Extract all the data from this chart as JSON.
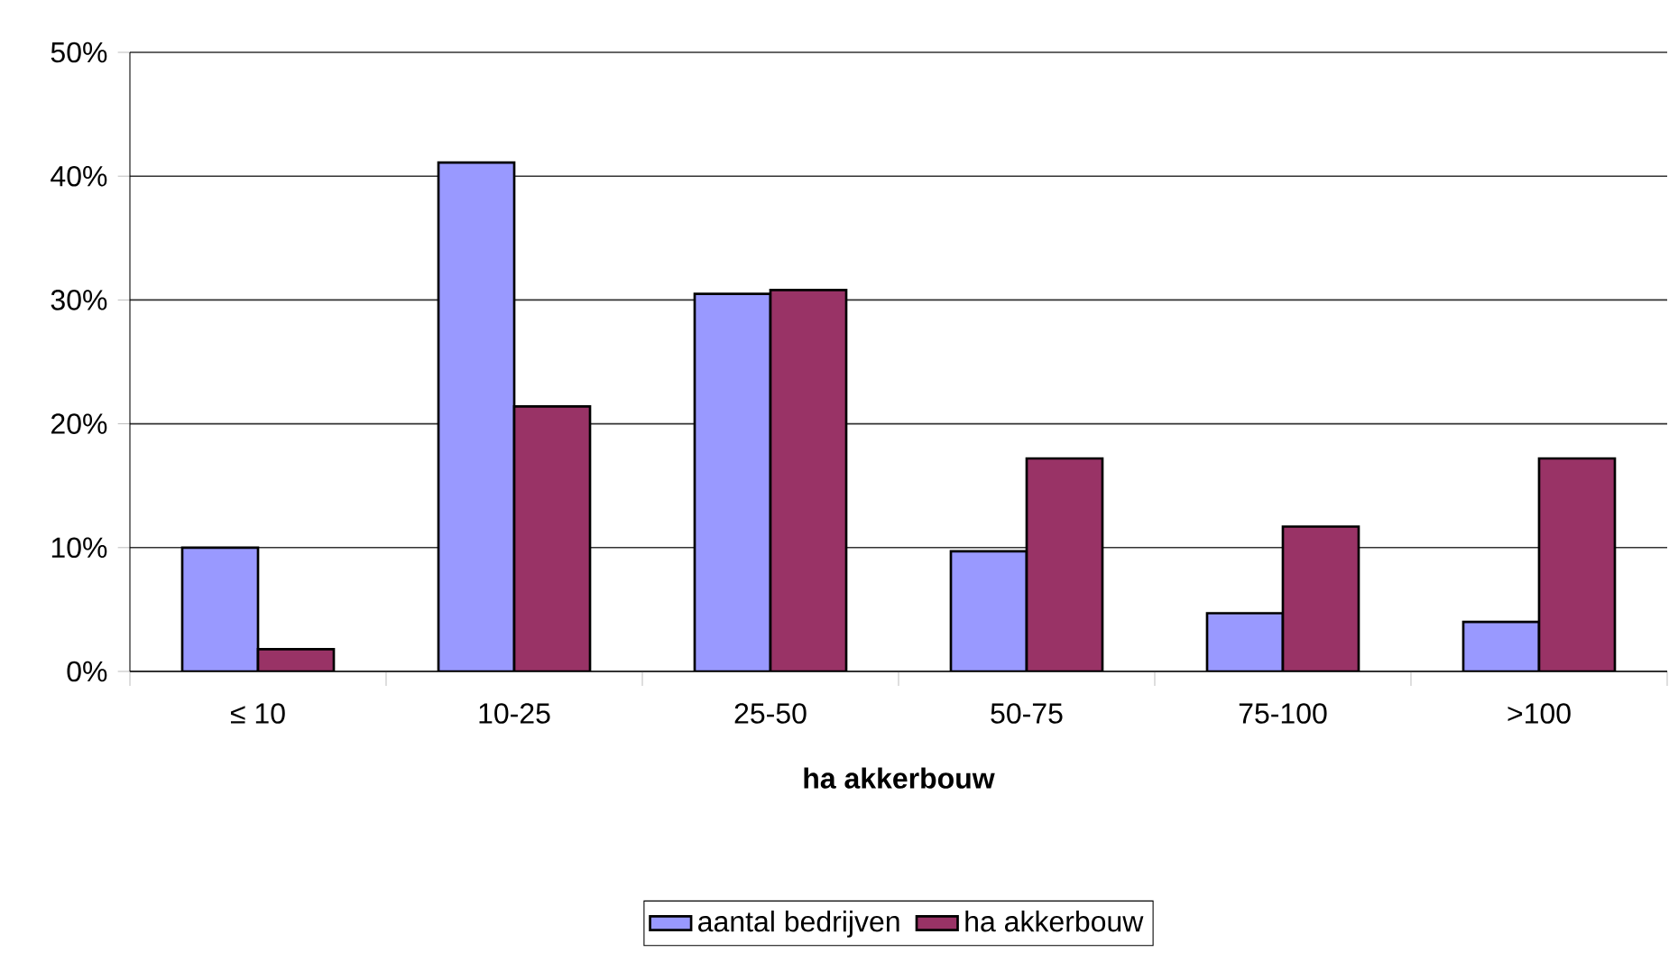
{
  "chart_data": {
    "type": "bar",
    "xlabel": "ha akkerbouw",
    "categories": [
      "≤ 10",
      "10-25",
      "25-50",
      "50-75",
      "75-100",
      ">100"
    ],
    "series": [
      {
        "name": "aantal bedrijven",
        "color": "#9999ff",
        "values": [
          10.0,
          41.1,
          30.5,
          9.7,
          4.7,
          4.0
        ]
      },
      {
        "name": "ha akkerbouw",
        "color": "#993366",
        "values": [
          1.8,
          21.4,
          30.8,
          17.2,
          11.7,
          17.2
        ]
      }
    ],
    "ylim": [
      0,
      50
    ],
    "yticks": [
      {
        "value": 0,
        "label": "0%"
      },
      {
        "value": 10,
        "label": "10%"
      },
      {
        "value": 20,
        "label": "20%"
      },
      {
        "value": 30,
        "label": "30%"
      },
      {
        "value": 40,
        "label": "40%"
      },
      {
        "value": 50,
        "label": "50%"
      }
    ],
    "grid": "y",
    "legend": "bottom"
  }
}
